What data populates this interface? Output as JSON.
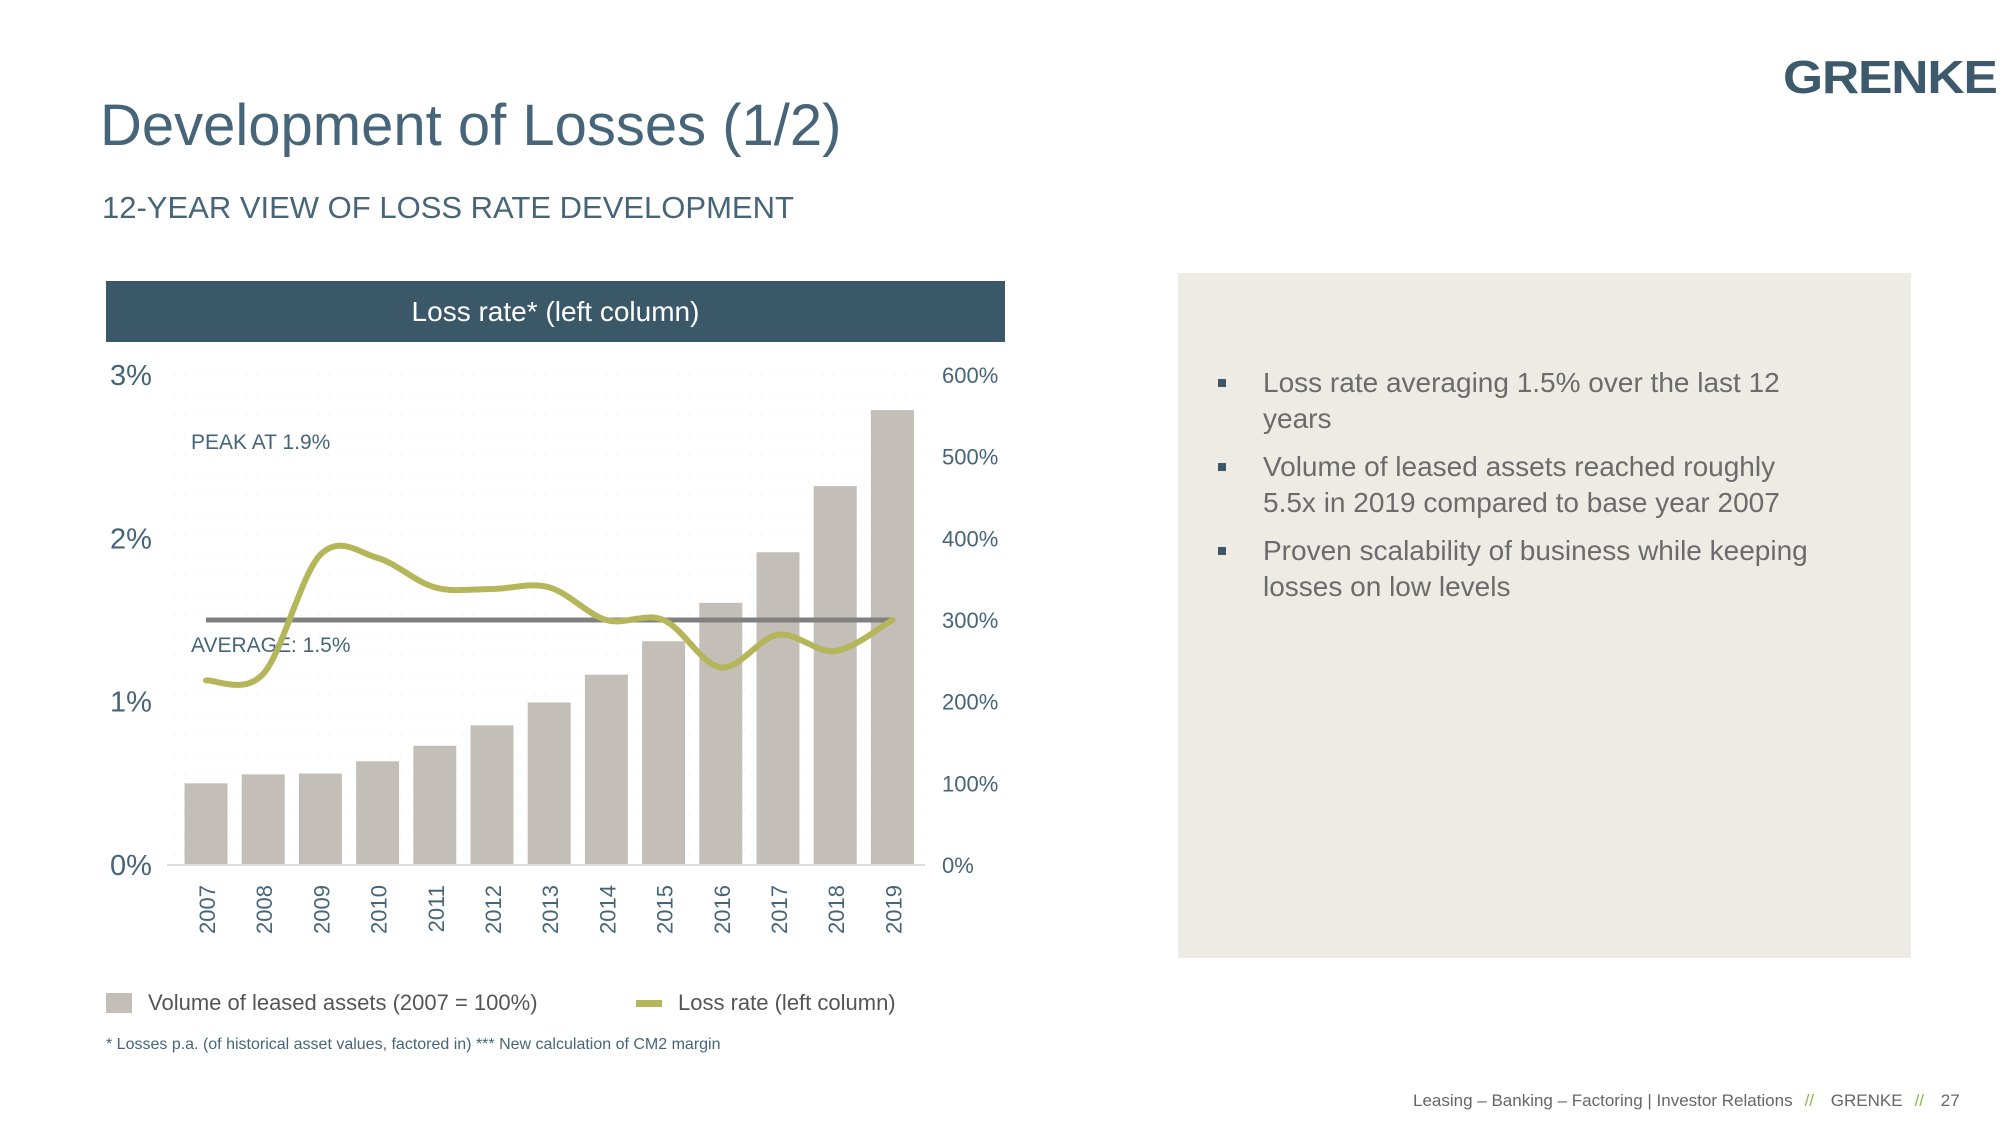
{
  "header": {
    "title": "Development of Losses (1/2)",
    "subtitle": "12-YEAR VIEW OF LOSS RATE DEVELOPMENT",
    "logo": "GRENKE"
  },
  "chart_data": {
    "type": "bar+line",
    "title": "Loss rate* (left column)",
    "categories": [
      "2007",
      "2008",
      "2009",
      "2010",
      "2011",
      "2012",
      "2013",
      "2014",
      "2015",
      "2016",
      "2017",
      "2018",
      "2019"
    ],
    "series": [
      {
        "name": "Volume of leased assets (2007 = 100%)",
        "type": "bar",
        "axis": "right",
        "values": [
          100,
          111,
          112,
          127,
          146,
          171,
          199,
          233,
          274,
          321,
          383,
          464,
          557
        ],
        "color": "#c3beb7"
      },
      {
        "name": "Loss rate (left column)",
        "type": "line",
        "axis": "left",
        "smooth": true,
        "values": [
          1.13,
          1.17,
          1.9,
          1.88,
          1.7,
          1.69,
          1.7,
          1.5,
          1.5,
          1.21,
          1.41,
          1.31,
          1.5
        ],
        "color": "#b5b55a"
      }
    ],
    "average": {
      "value": 1.5,
      "label": "AVERAGE: 1.5%",
      "color": "#808080"
    },
    "peak_label": "PEAK AT 1.9%",
    "left_axis": {
      "ylim": [
        0,
        3
      ],
      "ticks": [
        "0%",
        "1%",
        "2%",
        "3%"
      ]
    },
    "right_axis": {
      "ylim": [
        0,
        600
      ],
      "ticks": [
        "0%",
        "100%",
        "200%",
        "300%",
        "400%",
        "500%",
        "600%"
      ]
    },
    "grid": "dotted",
    "legend": "bottom"
  },
  "panel": {
    "bullets": [
      "Loss rate averaging 1.5% over the last 12 years",
      "Volume of leased assets reached roughly 5.5x in 2019 compared to base year 2007",
      "Proven scalability of business while keeping losses on low levels"
    ],
    "bg": "#edebe4"
  },
  "footnote": "* Losses p.a. (of historical asset values, factored in) *** New calculation of CM2 margin",
  "footer": {
    "text": "Leasing – Banking – Factoring | Investor Relations",
    "sep": "//",
    "brand": "GRENKE",
    "page": "27"
  }
}
